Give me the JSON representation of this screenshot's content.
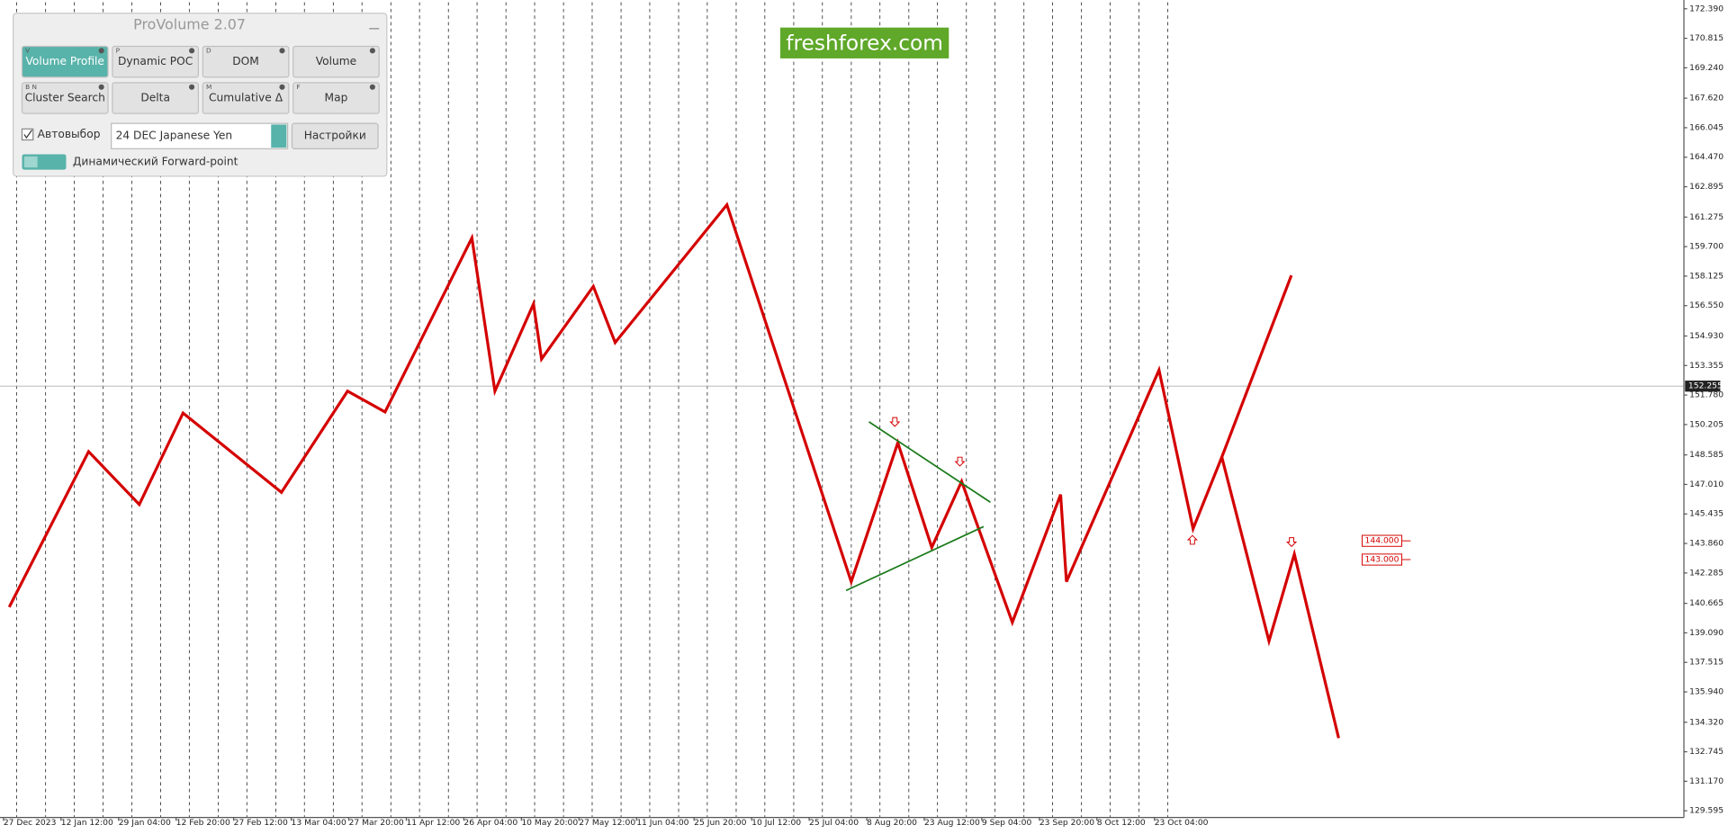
{
  "chart_data": {
    "type": "line",
    "xlim": [
      -0.06,
      29.2
    ],
    "ylim": [
      129.24,
      172.74
    ],
    "xticks": [
      {
        "value": 0,
        "label": "27 Dec 2023"
      },
      {
        "value": 1,
        "label": "12 Jan 12:00"
      },
      {
        "value": 2,
        "label": "29 Jan 04:00"
      },
      {
        "value": 3,
        "label": "12 Feb 20:00"
      },
      {
        "value": 4,
        "label": "27 Feb 12:00"
      },
      {
        "value": 5,
        "label": "13 Mar 04:00"
      },
      {
        "value": 6,
        "label": "27 Mar 20:00"
      },
      {
        "value": 7,
        "label": "11 Apr 12:00"
      },
      {
        "value": 8,
        "label": "26 Apr 04:00"
      },
      {
        "value": 9,
        "label": "10 May 20:00"
      },
      {
        "value": 10,
        "label": "27 May 12:00"
      },
      {
        "value": 11,
        "label": "11 Jun 04:00"
      },
      {
        "value": 12,
        "label": "25 Jun 20:00"
      },
      {
        "value": 13,
        "label": "10 Jul 12:00"
      },
      {
        "value": 14,
        "label": "25 Jul 04:00"
      },
      {
        "value": 15,
        "label": "8 Aug 20:00"
      },
      {
        "value": 16,
        "label": "23 Aug 12:00"
      },
      {
        "value": 17,
        "label": "9 Sep 04:00"
      },
      {
        "value": 18,
        "label": "23 Sep 20:00"
      },
      {
        "value": 19,
        "label": "8 Oct 12:00"
      },
      {
        "value": 20,
        "label": "23 Oct 04:00"
      }
    ],
    "yticks": [
      {
        "value": 172.39,
        "label": "172.390"
      },
      {
        "value": 170.815,
        "label": "170.815"
      },
      {
        "value": 169.24,
        "label": "169.240"
      },
      {
        "value": 167.62,
        "label": "167.620"
      },
      {
        "value": 166.045,
        "label": "166.045"
      },
      {
        "value": 164.47,
        "label": "164.470"
      },
      {
        "value": 162.895,
        "label": "162.895"
      },
      {
        "value": 161.275,
        "label": "161.275"
      },
      {
        "value": 159.7,
        "label": "159.700"
      },
      {
        "value": 158.125,
        "label": "158.125"
      },
      {
        "value": 156.55,
        "label": "156.550"
      },
      {
        "value": 154.93,
        "label": "154.930"
      },
      {
        "value": 153.355,
        "label": "153.355"
      },
      {
        "value": 151.78,
        "label": "151.780"
      },
      {
        "value": 150.205,
        "label": "150.205"
      },
      {
        "value": 148.585,
        "label": "148.585"
      },
      {
        "value": 147.01,
        "label": "147.010"
      },
      {
        "value": 145.435,
        "label": "145.435"
      },
      {
        "value": 143.86,
        "label": "143.860"
      },
      {
        "value": 142.285,
        "label": "142.285"
      },
      {
        "value": 140.665,
        "label": "140.665"
      },
      {
        "value": 139.09,
        "label": "139.090"
      },
      {
        "value": 137.515,
        "label": "137.515"
      },
      {
        "value": 135.94,
        "label": "135.940"
      },
      {
        "value": 134.32,
        "label": "134.320"
      },
      {
        "value": 132.745,
        "label": "132.745"
      },
      {
        "value": 131.17,
        "label": "131.170"
      },
      {
        "value": 129.595,
        "label": "129.595"
      }
    ],
    "current_price": {
      "value": 152.255,
      "label": "152.255"
    },
    "levels": [
      {
        "value": 144,
        "label": "144.000"
      },
      {
        "value": 143,
        "label": "143.000"
      }
    ],
    "series": [
      {
        "color": "#d40000",
        "x": [
          0.1,
          1.48,
          2.36,
          3.12,
          4.83,
          5.98,
          6.63,
          8.14,
          8.54,
          9.21,
          9.35,
          10.25,
          10.63,
          12.57,
          14.73,
          15.54,
          16.13,
          16.65,
          17.53,
          18.37,
          18.47,
          20.08,
          20.67,
          21.17,
          21.99,
          22.43,
          23.2
        ],
        "values": [
          140.47,
          148.76,
          145.94,
          150.82,
          146.59,
          151.99,
          150.88,
          160.16,
          151.99,
          156.64,
          153.7,
          157.58,
          154.58,
          161.93,
          141.82,
          149.23,
          143.65,
          147.17,
          139.65,
          146.47,
          141.82,
          153.11,
          144.65,
          148.47,
          138.65,
          143.29,
          133.48
        ]
      },
      {
        "color": "#d40000",
        "x": [
          21.17,
          22.38
        ],
        "values": [
          148.47,
          158.17
        ]
      },
      {
        "color": "#1a7a1a",
        "x": [
          15.04,
          17.15
        ],
        "values": [
          150.35,
          146.06
        ]
      },
      {
        "color": "#1a7a1a",
        "x": [
          14.64,
          17.03
        ],
        "values": [
          141.35,
          144.76
        ]
      }
    ]
  },
  "watermark": "freshforex.com",
  "panel": {
    "title": "ProVolume 2.07",
    "buttons": [
      {
        "key": "V",
        "label": "Volume Profile"
      },
      {
        "key": "P",
        "label": "Dynamic POC"
      },
      {
        "key": "D",
        "label": "DOM"
      },
      {
        "label": "Volume"
      },
      {
        "key": "B N",
        "label": "Cluster Search"
      },
      {
        "label": "Delta"
      },
      {
        "key": "M",
        "label": "Cumulative Δ"
      },
      {
        "key": "F",
        "label": "Map"
      }
    ],
    "checkbox": "Автовыбор",
    "instrument": "24 DEC Japanese Yen",
    "settings": "Настройки",
    "toggle": "Динамический Forward-point"
  }
}
